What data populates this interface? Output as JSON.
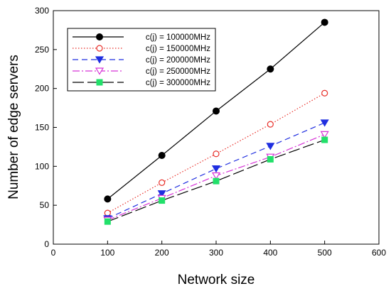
{
  "chart_data": {
    "type": "line",
    "xlabel": "Network size",
    "ylabel": "Number of edge servers",
    "xlim": [
      0,
      600
    ],
    "ylim": [
      0,
      300
    ],
    "xticks": [
      0,
      100,
      200,
      300,
      400,
      500,
      600
    ],
    "yticks": [
      0,
      50,
      100,
      150,
      200,
      250,
      300
    ],
    "grid": false,
    "legend_position": "top-left",
    "x": [
      100,
      200,
      300,
      400,
      500
    ],
    "series": [
      {
        "name": "c(j) = 100000MHz",
        "values": [
          58,
          114,
          171,
          225,
          285
        ],
        "color": "#000000",
        "dash": "solid",
        "marker": "filled-circle"
      },
      {
        "name": "c(j) = 150000MHz",
        "values": [
          40,
          79,
          116,
          154,
          194
        ],
        "color": "#e8302a",
        "dash": "dotted",
        "marker": "open-circle"
      },
      {
        "name": "c(j) = 200000MHz",
        "values": [
          33,
          65,
          97,
          126,
          156
        ],
        "color": "#1f2ee0",
        "dash": "dashed",
        "marker": "filled-triangle-down"
      },
      {
        "name": "c(j) = 250000MHz",
        "values": [
          31,
          59,
          88,
          112,
          141
        ],
        "color": "#d633d6",
        "dash": "dash-dot",
        "marker": "open-triangle-down"
      },
      {
        "name": "c(j) = 300000MHz",
        "values": [
          29,
          56,
          81,
          109,
          134
        ],
        "color": "#000000",
        "dash": "long-dash",
        "marker": "filled-square",
        "marker_color": "#22e06a"
      }
    ]
  }
}
